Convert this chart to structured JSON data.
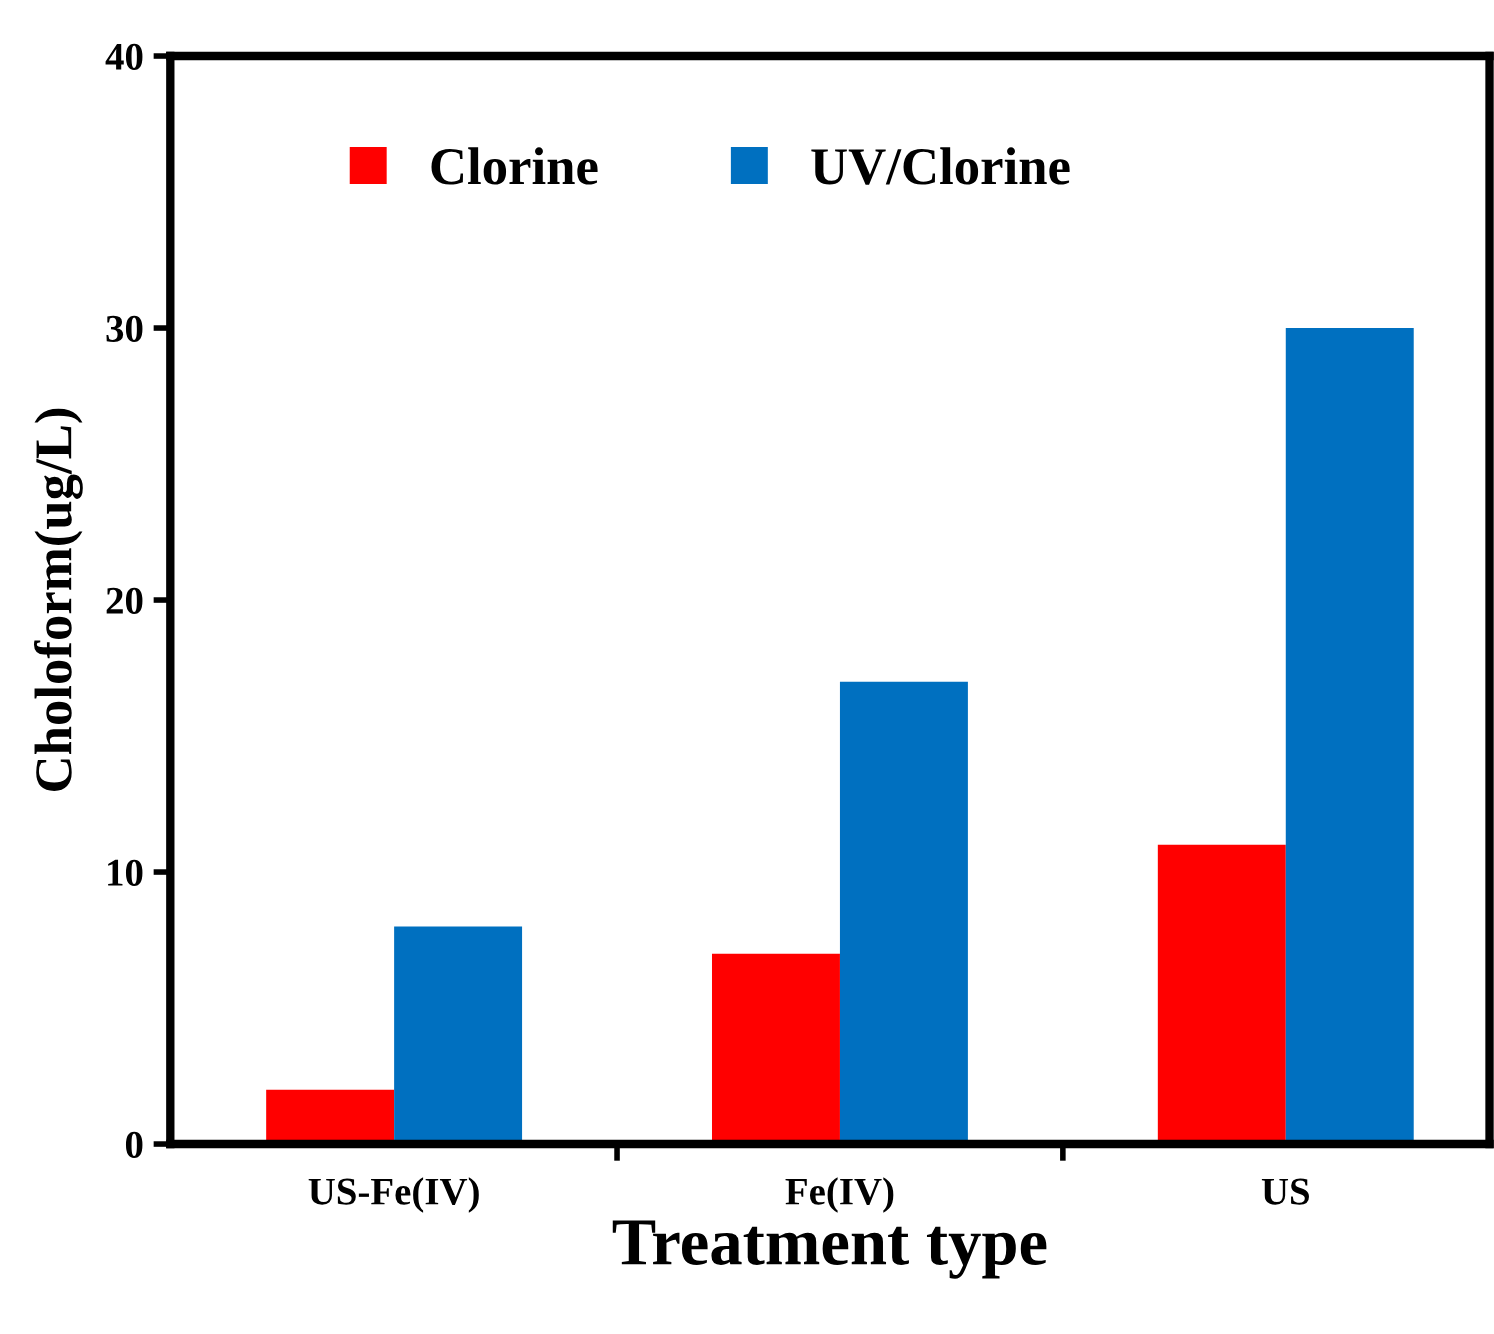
{
  "chart_data": {
    "type": "bar",
    "xlabel": "Treatment type",
    "ylabel": "Choloform(ug/L)",
    "categories": [
      "US-Fe(IV)",
      "Fe(IV)",
      "US"
    ],
    "series": [
      {
        "name": "Clorine",
        "color": "#ff0000",
        "values": [
          2,
          7,
          11
        ]
      },
      {
        "name": "UV/Clorine",
        "color": "#0070c0",
        "values": [
          8,
          17,
          30
        ]
      }
    ],
    "ylim": [
      0,
      40
    ],
    "yticks": [
      0,
      10,
      20,
      30,
      40
    ],
    "grid": false,
    "legend": "top left"
  }
}
